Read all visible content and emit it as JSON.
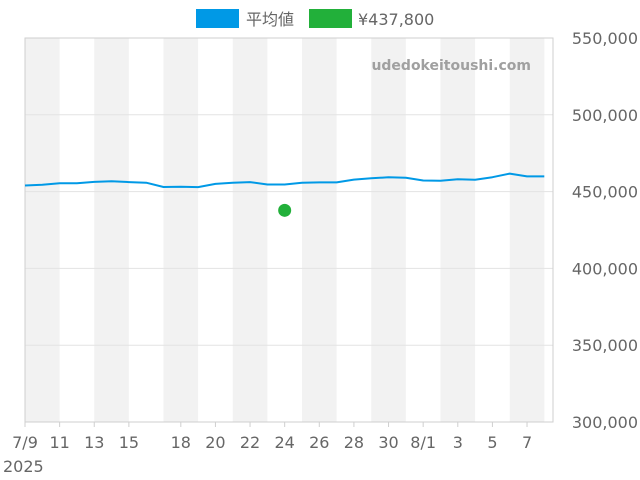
{
  "legend": [
    {
      "label": "平均値",
      "color": "#0099e6"
    },
    {
      "label": "¥437,800",
      "color": "#22b03a"
    }
  ],
  "watermark": "udedokeitoushi.com",
  "chart_data": {
    "type": "line",
    "x_tick_labels": [
      "7/9",
      "11",
      "13",
      "15",
      "18",
      "20",
      "22",
      "24",
      "26",
      "28",
      "30",
      "8/1",
      "3",
      "5",
      "7"
    ],
    "x_year_label": "2025",
    "y_ticks": [
      300000,
      350000,
      400000,
      450000,
      500000,
      550000
    ],
    "y_tick_labels": [
      "300,000",
      "350,000",
      "400,000",
      "450,000",
      "500,000",
      "550,000"
    ],
    "ylim": [
      300000,
      550000
    ],
    "grid": true,
    "legend_position": "top",
    "series": [
      {
        "name": "平均値",
        "color": "#0099e6",
        "x": [
          "7/9",
          "7/10",
          "7/11",
          "7/12",
          "7/13",
          "7/14",
          "7/15",
          "7/16",
          "7/17",
          "7/18",
          "7/19",
          "7/20",
          "7/21",
          "7/22",
          "7/23",
          "7/24",
          "7/25",
          "7/26",
          "7/27",
          "7/28",
          "7/29",
          "7/30",
          "7/31",
          "8/1",
          "8/2",
          "8/3",
          "8/4",
          "8/5",
          "8/6",
          "8/7",
          "8/8"
        ],
        "values": [
          454000,
          454500,
          455500,
          455500,
          456300,
          456700,
          456200,
          455800,
          453000,
          453200,
          452900,
          455000,
          455800,
          456200,
          454600,
          454600,
          455800,
          456000,
          456000,
          457800,
          458700,
          459300,
          459000,
          457200,
          457000,
          458100,
          457700,
          459400,
          461700,
          459900,
          459900
        ]
      },
      {
        "name": "¥437,800",
        "color": "#22b03a",
        "type": "scatter",
        "x": [
          "7/24"
        ],
        "values": [
          437800
        ]
      }
    ]
  }
}
